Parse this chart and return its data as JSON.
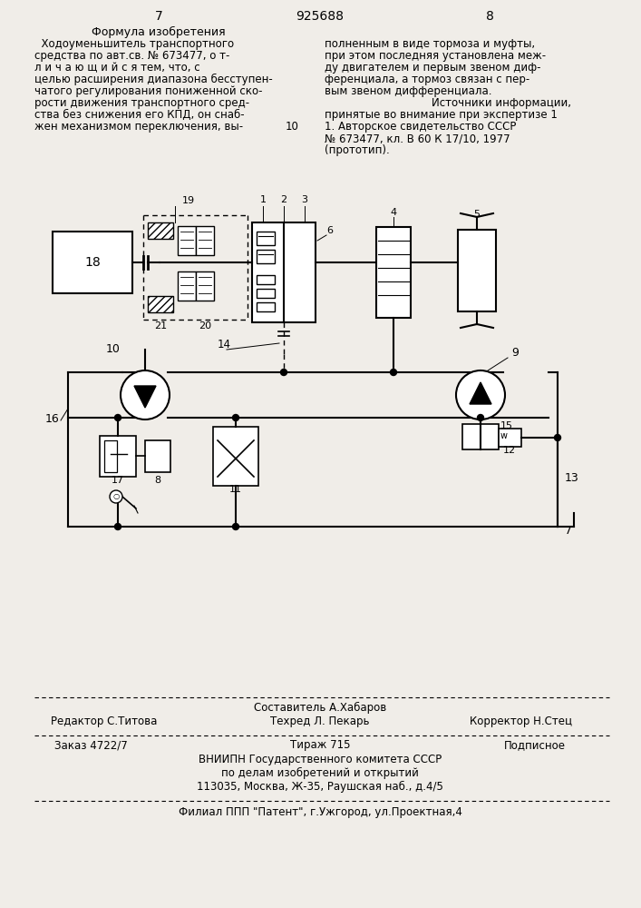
{
  "bg_color": "#f0ede8",
  "page_num_left": "7",
  "page_num_center": "925688",
  "page_num_right": "8",
  "left_header": "Формула изобретения",
  "bottom_editor": "Редактор С.Титова",
  "bottom_composer": "Составитель А.Хабаров",
  "bottom_techred": "Техред Л. Пекарь",
  "bottom_corrector": "Корректор Н.Стец",
  "bottom_order": "Заказ 4722/7",
  "bottom_tirazh": "Тираж 715",
  "bottom_podpisnoe": "Подписное",
  "bottom_vniipni": "ВНИИПН Государственного комитета СССР",
  "bottom_po_delam": "по делам изобретений и открытий",
  "bottom_address": "113035, Москва, Ж-35, Раушская наб., д.4/5",
  "bottom_filial": "Филиал ППП \"Патент\", г.Ужгород, ул.Проектная,4"
}
